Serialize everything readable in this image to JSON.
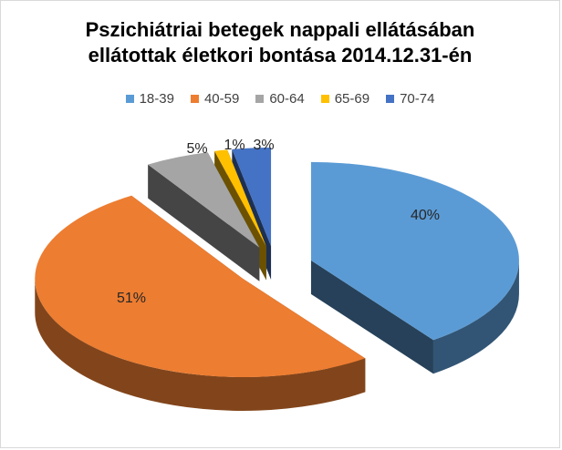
{
  "chart_data": {
    "type": "pie",
    "title_lines": [
      "Pszichiátriai betegek nappali ellátásában",
      "ellátottak életkori bontása 2014.12.31-én"
    ],
    "categories": [
      "18-39",
      "40-59",
      "60-64",
      "65-69",
      "70-74"
    ],
    "values": [
      40,
      51,
      5,
      1,
      3
    ],
    "data_labels": [
      "40%",
      "51%",
      "5%",
      "1%",
      "3%"
    ],
    "colors": [
      "#5B9BD5",
      "#ED7D31",
      "#A5A5A5",
      "#FFC000",
      "#4472C4"
    ],
    "legend_position": "top",
    "style": "3d-exploded"
  }
}
